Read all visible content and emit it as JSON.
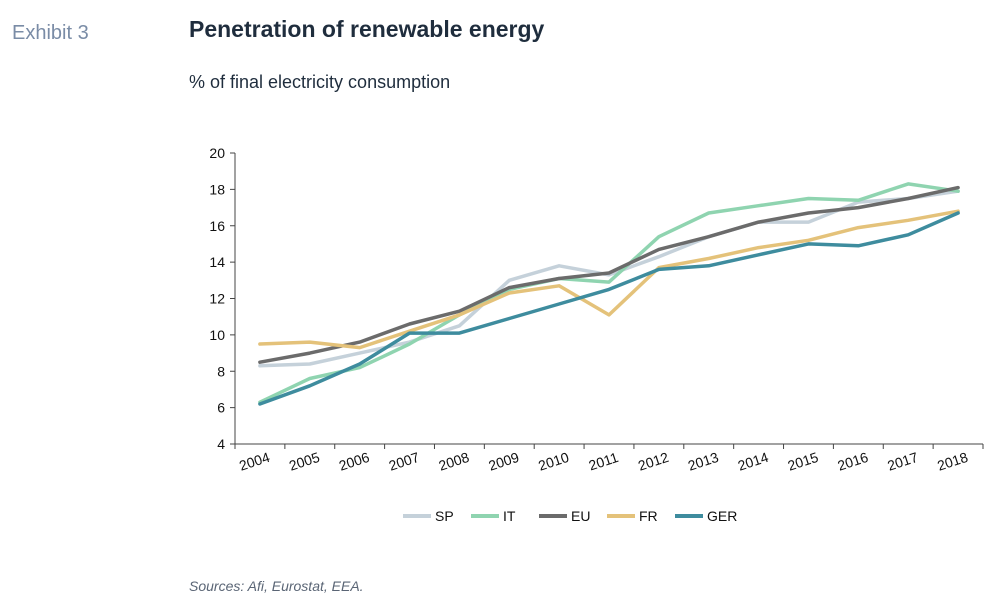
{
  "header": {
    "exhibit": "Exhibit 3",
    "title": "Penetration of renewable energy",
    "subtitle": "% of final electricity consumption"
  },
  "footer": {
    "source": "Sources: Afi, Eurostat, EEA."
  },
  "chart_data": {
    "type": "line",
    "title": "Penetration of renewable energy",
    "subtitle": "% of final electricity consumption",
    "xlabel": "",
    "ylabel": "",
    "categories": [
      "2004",
      "2005",
      "2006",
      "2007",
      "2008",
      "2009",
      "2010",
      "2011",
      "2012",
      "2013",
      "2014",
      "2015",
      "2016",
      "2017",
      "2018"
    ],
    "ylim": [
      4,
      20
    ],
    "yticks": [
      4,
      6,
      8,
      10,
      12,
      14,
      16,
      18,
      20
    ],
    "grid": false,
    "legend_position": "bottom",
    "series": [
      {
        "name": "SP",
        "color": "#c5d1da",
        "values": [
          8.3,
          8.4,
          9.0,
          9.6,
          10.5,
          13.0,
          13.8,
          13.3,
          14.3,
          15.4,
          16.2,
          16.2,
          17.3,
          17.5,
          17.9
        ]
      },
      {
        "name": "IT",
        "color": "#8fd4b0",
        "values": [
          6.3,
          7.6,
          8.2,
          9.5,
          11.1,
          12.5,
          13.1,
          12.9,
          15.4,
          16.7,
          17.1,
          17.5,
          17.4,
          18.3,
          17.9
        ]
      },
      {
        "name": "EU",
        "color": "#6b6b6b",
        "values": [
          8.5,
          9.0,
          9.6,
          10.6,
          11.3,
          12.6,
          13.1,
          13.4,
          14.7,
          15.4,
          16.2,
          16.7,
          17.0,
          17.5,
          18.1
        ]
      },
      {
        "name": "FR",
        "color": "#e4c27a",
        "values": [
          9.5,
          9.6,
          9.3,
          10.2,
          11.1,
          12.3,
          12.7,
          11.1,
          13.7,
          14.2,
          14.8,
          15.2,
          15.9,
          16.3,
          16.8
        ]
      },
      {
        "name": "GER",
        "color": "#3e8c9e",
        "values": [
          6.2,
          7.2,
          8.4,
          10.1,
          10.1,
          10.9,
          11.7,
          12.5,
          13.6,
          13.8,
          14.4,
          15.0,
          14.9,
          15.5,
          16.7
        ]
      }
    ]
  }
}
